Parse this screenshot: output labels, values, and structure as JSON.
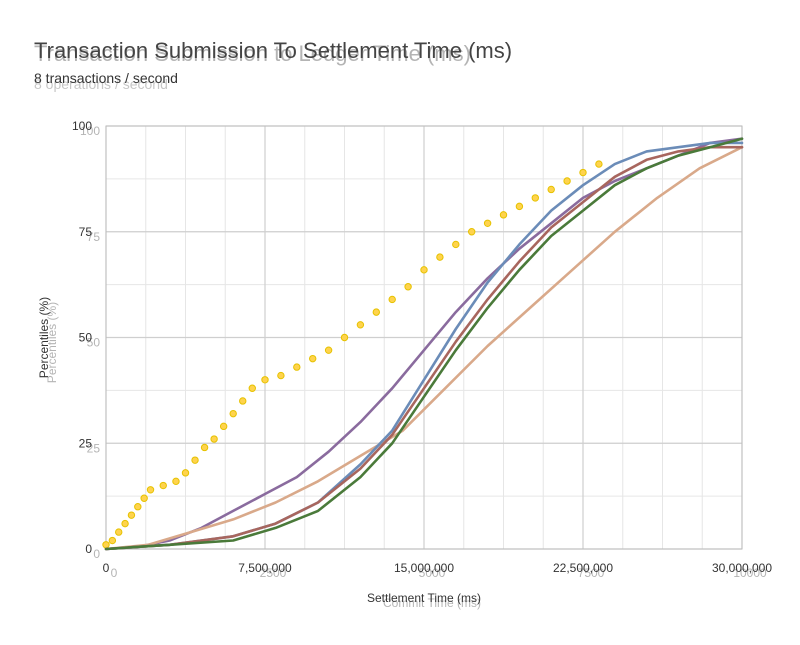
{
  "chart_data": [
    {
      "type": "line",
      "title": "Transaction Submission To Settlement Time (ms)",
      "subtitle": "8 transactions / second",
      "xlabel": "Settlement Time (ms)",
      "ylabel": "Percentiles (%)",
      "xlim": [
        0,
        30000000
      ],
      "ylim": [
        0,
        100
      ],
      "x_ticks": [
        0,
        7500000,
        15000000,
        22500000,
        30000000
      ],
      "x_tick_labels": [
        "0",
        "7,500,000",
        "15,000,000",
        "22,500,000",
        "30,000,000"
      ],
      "y_ticks": [
        0,
        25,
        50,
        75,
        100
      ],
      "grid": true,
      "legend": "none",
      "series": [
        {
          "color": "#e6c200",
          "style": "markers",
          "points": [
            [
              0,
              1
            ],
            [
              300000,
              2
            ],
            [
              600000,
              4
            ],
            [
              900000,
              6
            ],
            [
              1200000,
              8
            ],
            [
              1500000,
              10
            ],
            [
              1800000,
              12
            ],
            [
              2100000,
              14
            ],
            [
              2700000,
              15
            ],
            [
              3300000,
              16
            ],
            [
              3750000,
              18
            ],
            [
              4200000,
              21
            ],
            [
              4650000,
              24
            ],
            [
              5100000,
              26
            ],
            [
              5550000,
              29
            ],
            [
              6000000,
              32
            ],
            [
              6450000,
              35
            ],
            [
              6900000,
              38
            ],
            [
              7500000,
              40
            ],
            [
              8250000,
              41
            ],
            [
              9000000,
              43
            ],
            [
              9750000,
              45
            ],
            [
              10500000,
              47
            ],
            [
              11250000,
              50
            ],
            [
              12000000,
              53
            ],
            [
              12750000,
              56
            ],
            [
              13500000,
              59
            ],
            [
              14250000,
              62
            ],
            [
              15000000,
              66
            ],
            [
              15750000,
              69
            ],
            [
              16500000,
              72
            ],
            [
              17250000,
              75
            ],
            [
              18000000,
              77
            ],
            [
              18750000,
              79
            ],
            [
              19500000,
              81
            ],
            [
              20250000,
              83
            ],
            [
              21000000,
              85
            ],
            [
              21750000,
              87
            ],
            [
              22500000,
              89
            ],
            [
              23250000,
              91
            ]
          ]
        },
        {
          "color": "#8a6b9e",
          "style": "line",
          "points": [
            [
              0,
              0
            ],
            [
              1500000,
              0.5
            ],
            [
              3000000,
              2
            ],
            [
              4500000,
              5
            ],
            [
              6000000,
              9
            ],
            [
              7500000,
              13
            ],
            [
              9000000,
              17
            ],
            [
              10500000,
              23
            ],
            [
              12000000,
              30
            ],
            [
              13500000,
              38
            ],
            [
              15000000,
              47
            ],
            [
              16500000,
              56
            ],
            [
              18000000,
              64
            ],
            [
              19500000,
              71
            ],
            [
              21000000,
              77
            ],
            [
              22500000,
              83
            ],
            [
              24000000,
              87
            ],
            [
              25500000,
              90
            ],
            [
              27000000,
              93
            ],
            [
              28500000,
              96
            ],
            [
              30000000,
              97
            ]
          ]
        },
        {
          "color": "#d9a98a",
          "style": "line",
          "points": [
            [
              0,
              0
            ],
            [
              2000000,
              1
            ],
            [
              4000000,
              4
            ],
            [
              6000000,
              7
            ],
            [
              8000000,
              11
            ],
            [
              10000000,
              16
            ],
            [
              12000000,
              22
            ],
            [
              14000000,
              28
            ],
            [
              16000000,
              38
            ],
            [
              18000000,
              48
            ],
            [
              20000000,
              57
            ],
            [
              22000000,
              66
            ],
            [
              24000000,
              75
            ],
            [
              26000000,
              83
            ],
            [
              28000000,
              90
            ],
            [
              30000000,
              95
            ]
          ]
        },
        {
          "color": "#6b8cb8",
          "style": "line",
          "points": [
            [
              0,
              0
            ],
            [
              3000000,
              1
            ],
            [
              6000000,
              3
            ],
            [
              8000000,
              6
            ],
            [
              10000000,
              11
            ],
            [
              12000000,
              20
            ],
            [
              13500000,
              28
            ],
            [
              15000000,
              40
            ],
            [
              16500000,
              52
            ],
            [
              18000000,
              63
            ],
            [
              19500000,
              72
            ],
            [
              21000000,
              80
            ],
            [
              22500000,
              86
            ],
            [
              24000000,
              91
            ],
            [
              25500000,
              94
            ],
            [
              27000000,
              95
            ],
            [
              28500000,
              96
            ],
            [
              30000000,
              96
            ]
          ]
        },
        {
          "color": "#a8665e",
          "style": "line",
          "points": [
            [
              0,
              0
            ],
            [
              3000000,
              1
            ],
            [
              6000000,
              3
            ],
            [
              8000000,
              6
            ],
            [
              10000000,
              11
            ],
            [
              12000000,
              19
            ],
            [
              13500000,
              27
            ],
            [
              15000000,
              38
            ],
            [
              16500000,
              49
            ],
            [
              18000000,
              59
            ],
            [
              19500000,
              68
            ],
            [
              21000000,
              76
            ],
            [
              22500000,
              82
            ],
            [
              24000000,
              88
            ],
            [
              25500000,
              92
            ],
            [
              27000000,
              94
            ],
            [
              28500000,
              95
            ],
            [
              30000000,
              95
            ]
          ]
        },
        {
          "color": "#4a7a3a",
          "style": "line",
          "points": [
            [
              0,
              0
            ],
            [
              3000000,
              1
            ],
            [
              6000000,
              2
            ],
            [
              8000000,
              5
            ],
            [
              10000000,
              9
            ],
            [
              12000000,
              17
            ],
            [
              13500000,
              25
            ],
            [
              15000000,
              36
            ],
            [
              16500000,
              47
            ],
            [
              18000000,
              57
            ],
            [
              19500000,
              66
            ],
            [
              21000000,
              74
            ],
            [
              22500000,
              80
            ],
            [
              24000000,
              86
            ],
            [
              25500000,
              90
            ],
            [
              27000000,
              93
            ],
            [
              28500000,
              95
            ],
            [
              30000000,
              97
            ]
          ]
        }
      ]
    },
    {
      "type": "line",
      "title": "Transaction Submission to Ledger Time (ms)",
      "subtitle": "8 operations / second",
      "xlabel": "Commit Time (ms)",
      "ylabel": "Percentiles (%)",
      "xlim": [
        0,
        10000
      ],
      "ylim": [
        0,
        100
      ],
      "x_ticks": [
        0,
        2500,
        5000,
        7500,
        10000
      ],
      "x_tick_labels": [
        "0",
        "2500",
        "5000",
        "7500",
        "10000"
      ],
      "y_ticks": [
        0,
        25,
        50,
        75,
        100
      ],
      "grid": true,
      "legend": "none",
      "series": []
    }
  ]
}
